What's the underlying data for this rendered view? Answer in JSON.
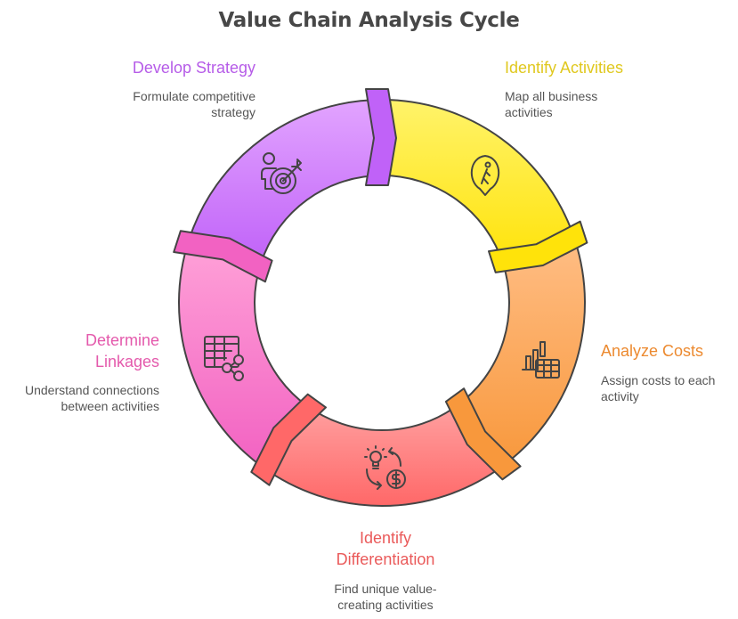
{
  "title": "Value Chain Analysis Cycle",
  "steps": [
    {
      "title": "Identify Activities",
      "title_lines": [
        "Identify Activities"
      ],
      "desc_lines": [
        "Map all business",
        "activities"
      ],
      "color": "#e0c81e",
      "fill_top": "#fff36a",
      "fill_bottom": "#ffe30a",
      "icon": "location-pin-walker-icon"
    },
    {
      "title": "Analyze Costs",
      "title_lines": [
        "Analyze Costs"
      ],
      "desc_lines": [
        "Assign costs to each",
        "activity"
      ],
      "color": "#ec8a30",
      "fill_top": "#ffbd84",
      "fill_bottom": "#f8983c",
      "icon": "bar-chart-table-icon"
    },
    {
      "title": "Identify Differentiation",
      "title_lines": [
        "Identify",
        "Differentiation"
      ],
      "desc_lines": [
        "Find unique value-",
        "creating activities"
      ],
      "color": "#ea5a5a",
      "fill_top": "#ffa0a0",
      "fill_bottom": "#ff6868",
      "icon": "idea-money-cycle-icon"
    },
    {
      "title": "Determine Linkages",
      "title_lines": [
        "Determine",
        "Linkages"
      ],
      "desc_lines": [
        "Understand connections",
        "between activities"
      ],
      "color": "#e45aac",
      "fill_top": "#ffa2d8",
      "fill_bottom": "#f262c2",
      "icon": "table-share-icon"
    },
    {
      "title": "Develop Strategy",
      "title_lines": [
        "Develop Strategy"
      ],
      "desc_lines": [
        "Formulate competitive",
        "strategy"
      ],
      "color": "#b65ce8",
      "fill_top": "#e2a4ff",
      "fill_bottom": "#c062f8",
      "icon": "person-target-icon"
    }
  ]
}
